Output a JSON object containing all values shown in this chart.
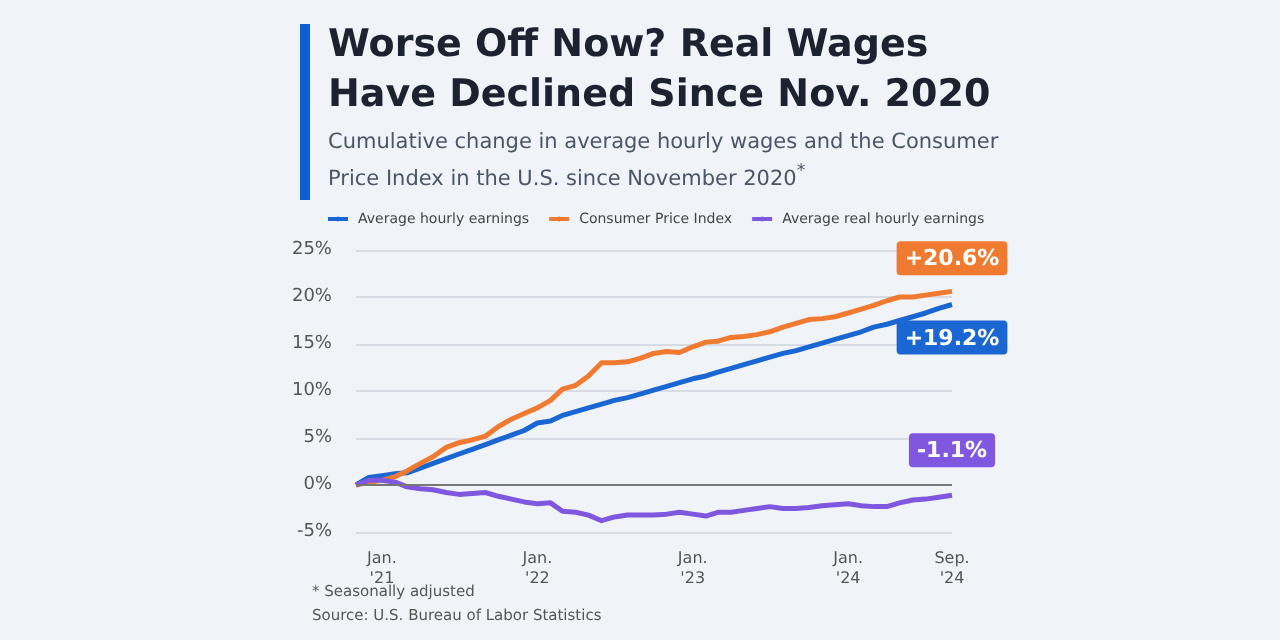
{
  "chart_data": {
    "type": "line",
    "title": "Worse Off Now? Real Wages Have Declined Since Nov. 2020",
    "subtitle": "Cumulative change in average hourly wages and the Consumer Price Index in the U.S. since November 2020$^{*}$",
    "annotations": [
      "* Seasonally adjusted",
      "Source: U.S. Bureau of Labor Statistics"
    ],
    "x": [
      "2020-11",
      "2020-12",
      "2021-01",
      "2021-02",
      "2021-03",
      "2021-04",
      "2021-05",
      "2021-06",
      "2021-07",
      "2021-08",
      "2021-09",
      "2021-10",
      "2021-11",
      "2021-12",
      "2022-01",
      "2022-02",
      "2022-03",
      "2022-04",
      "2022-05",
      "2022-06",
      "2022-07",
      "2022-08",
      "2022-09",
      "2022-10",
      "2022-11",
      "2022-12",
      "2023-01",
      "2023-02",
      "2023-03",
      "2023-04",
      "2023-05",
      "2023-06",
      "2023-07",
      "2023-08",
      "2023-09",
      "2023-10",
      "2023-11",
      "2023-12",
      "2024-01",
      "2024-02",
      "2024-03",
      "2024-04",
      "2024-05",
      "2024-06",
      "2024-07",
      "2024-08",
      "2024-09"
    ],
    "series": [
      {
        "name": "Average hourly earnings",
        "color": "#1a66d2",
        "values": [
          0,
          0.8,
          1.0,
          1.2,
          1.3,
          1.8,
          2.3,
          2.8,
          3.3,
          3.8,
          4.3,
          4.8,
          5.3,
          5.8,
          6.6,
          6.8,
          7.4,
          7.8,
          8.2,
          8.6,
          9.0,
          9.3,
          9.7,
          10.1,
          10.5,
          10.9,
          11.3,
          11.6,
          12.0,
          12.4,
          12.8,
          13.2,
          13.6,
          14.0,
          14.3,
          14.7,
          15.1,
          15.5,
          15.9,
          16.3,
          16.8,
          17.1,
          17.5,
          17.9,
          18.3,
          18.8,
          19.2
        ],
        "value_labels": [
          null,
          null,
          null,
          null,
          null,
          null,
          null,
          null,
          null,
          null,
          null,
          null,
          null,
          null,
          null,
          null,
          null,
          null,
          null,
          null,
          null,
          null,
          null,
          null,
          null,
          null,
          null,
          null,
          null,
          null,
          null,
          null,
          null,
          null,
          null,
          null,
          null,
          null,
          null,
          null,
          null,
          null,
          null,
          null,
          null,
          null,
          "+19.2%"
        ]
      },
      {
        "name": "Consumer Price Index",
        "color": "#f07a30",
        "values": [
          0,
          0.3,
          0.5,
          0.9,
          1.5,
          2.3,
          3.0,
          4.0,
          4.5,
          4.8,
          5.2,
          6.2,
          7.0,
          7.6,
          8.2,
          9.0,
          10.2,
          10.6,
          11.6,
          13.0,
          13.0,
          13.1,
          13.5,
          14.0,
          14.2,
          14.1,
          14.7,
          15.2,
          15.3,
          15.7,
          15.8,
          16.0,
          16.3,
          16.8,
          17.2,
          17.6,
          17.7,
          17.9,
          18.3,
          18.7,
          19.1,
          19.6,
          20.0,
          20.0,
          20.2,
          20.4,
          20.6
        ],
        "value_labels": [
          null,
          null,
          null,
          null,
          null,
          null,
          null,
          null,
          null,
          null,
          null,
          null,
          null,
          null,
          null,
          null,
          null,
          null,
          null,
          null,
          null,
          null,
          null,
          null,
          null,
          null,
          null,
          null,
          null,
          null,
          null,
          null,
          null,
          null,
          null,
          null,
          null,
          null,
          null,
          null,
          null,
          null,
          null,
          null,
          null,
          null,
          "+20.6%"
        ]
      },
      {
        "name": "Average real hourly earnings",
        "color": "#8058e0",
        "values": [
          0,
          0.5,
          0.5,
          0.3,
          -0.2,
          -0.4,
          -0.5,
          -0.8,
          -1.0,
          -0.9,
          -0.8,
          -1.2,
          -1.5,
          -1.8,
          -2.0,
          -1.9,
          -2.8,
          -2.9,
          -3.2,
          -3.8,
          -3.4,
          -3.2,
          -3.2,
          -3.2,
          -3.1,
          -2.9,
          -3.1,
          -3.3,
          -2.9,
          -2.9,
          -2.7,
          -2.5,
          -2.3,
          -2.5,
          -2.5,
          -2.4,
          -2.2,
          -2.1,
          -2.0,
          -2.2,
          -2.3,
          -2.3,
          -1.9,
          -1.6,
          -1.5,
          -1.3,
          -1.1
        ],
        "value_labels": [
          null,
          null,
          null,
          null,
          null,
          null,
          null,
          null,
          null,
          null,
          null,
          null,
          null,
          null,
          null,
          null,
          null,
          null,
          null,
          null,
          null,
          null,
          null,
          null,
          null,
          null,
          null,
          null,
          null,
          null,
          null,
          null,
          null,
          null,
          null,
          null,
          null,
          null,
          null,
          null,
          null,
          null,
          null,
          null,
          null,
          null,
          "-1.1%"
        ]
      }
    ],
    "xlim": [
      "2020-11",
      "2024-09"
    ],
    "xticks": [
      {
        "value": "2021-01",
        "label": "Jan.\n'21"
      },
      {
        "value": "2022-01",
        "label": "Jan.\n'22"
      },
      {
        "value": "2023-01",
        "label": "Jan.\n'23"
      },
      {
        "value": "2024-01",
        "label": "Jan.\n'24"
      },
      {
        "value": "2024-09",
        "label": "Sep.\n'24"
      }
    ],
    "ylim": [
      -5,
      25
    ],
    "yticks": [
      {
        "value": -5,
        "label": "-5%"
      },
      {
        "value": 0,
        "label": "0%"
      },
      {
        "value": 5,
        "label": "5%"
      },
      {
        "value": 10,
        "label": "10%"
      },
      {
        "value": 15,
        "label": "15%"
      },
      {
        "value": 20,
        "label": "20%"
      },
      {
        "value": 25,
        "label": "25%"
      }
    ],
    "grid": "y",
    "legend": "top left",
    "marker": "none",
    "line_style": "solid"
  }
}
